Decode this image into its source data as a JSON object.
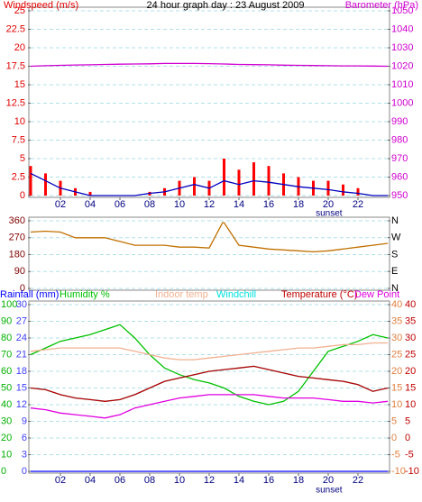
{
  "chart_data": [
    {
      "type": "line",
      "title": "24 hour graph day : 23 August 2009",
      "ylabel": "Windspeed (m/s)",
      "ylabel_color": "#e00000",
      "y2label": "Barometer (hPa)",
      "y2label_color": "#d000d0",
      "x": [
        0,
        1,
        2,
        3,
        4,
        5,
        6,
        7,
        8,
        9,
        10,
        11,
        12,
        13,
        14,
        15,
        16,
        17,
        18,
        19,
        20,
        21,
        22,
        23,
        24
      ],
      "xlim": [
        0,
        24
      ],
      "xticks": [
        {
          "value": 2,
          "label": "02"
        },
        {
          "value": 4,
          "label": "04"
        },
        {
          "value": 6,
          "label": "06"
        },
        {
          "value": 8,
          "label": "08"
        },
        {
          "value": 10,
          "label": "10"
        },
        {
          "value": 12,
          "label": "12"
        },
        {
          "value": 14,
          "label": "14"
        },
        {
          "value": 16,
          "label": "16"
        },
        {
          "value": 18,
          "label": "18"
        },
        {
          "value": 20,
          "label": "20"
        },
        {
          "value": 22,
          "label": "22"
        }
      ],
      "annotation": {
        "label": "sunset",
        "x": 20.05
      },
      "ylim": [
        0,
        25
      ],
      "yticks": [
        0,
        2.5,
        5,
        7.5,
        10,
        12.5,
        15,
        17.5,
        20,
        22.5,
        25
      ],
      "y2lim": [
        950,
        1050
      ],
      "y2ticks": [
        950,
        960,
        970,
        980,
        990,
        1000,
        1010,
        1020,
        1030,
        1040,
        1050
      ],
      "grid": true,
      "series": [
        {
          "type": "bar",
          "color": "#ff0000",
          "values": [
            4,
            3,
            2,
            1,
            0.5,
            0,
            0,
            0,
            0.5,
            1,
            2,
            2.5,
            2,
            5,
            3.5,
            4.5,
            4,
            3,
            2.5,
            2,
            2,
            1.5,
            1,
            0,
            0
          ]
        },
        {
          "type": "line",
          "color": "#0000c0",
          "values": [
            3,
            2,
            1,
            0.5,
            0,
            0,
            0,
            0,
            0.3,
            0.5,
            1,
            1.5,
            1,
            2,
            1.5,
            2,
            1.8,
            1.5,
            1.2,
            1,
            0.8,
            0.5,
            0.3,
            0,
            0
          ]
        },
        {
          "type": "line",
          "color": "#d000d0",
          "axis": "y2",
          "values": [
            1020,
            1020.3,
            1020.5,
            1020.7,
            1020.8,
            1021,
            1021.1,
            1021.2,
            1021.3,
            1021.5,
            1021.5,
            1021.5,
            1021.4,
            1021.2,
            1021,
            1020.9,
            1020.8,
            1020.6,
            1020.5,
            1020.4,
            1020.3,
            1020.2,
            1020.2,
            1020.1,
            1020
          ]
        }
      ]
    },
    {
      "type": "line",
      "ylabel_color": "#800000",
      "y2label_color": "#000000",
      "x": [
        0,
        1,
        2,
        3,
        4,
        5,
        6,
        7,
        8,
        9,
        10,
        11,
        12,
        12.9,
        13,
        14,
        15,
        16,
        17,
        18,
        19,
        20,
        21,
        22,
        23,
        24
      ],
      "xlim": [
        0,
        24
      ],
      "ylim": [
        0,
        360
      ],
      "yticks": [
        0,
        90,
        180,
        270,
        360
      ],
      "y2lim": [
        0,
        360
      ],
      "y2ticks": [
        {
          "value": 360,
          "label": "N"
        },
        {
          "value": 270,
          "label": "W"
        },
        {
          "value": 180,
          "label": "S"
        },
        {
          "value": 90,
          "label": "E"
        },
        {
          "value": 0,
          "label": "N"
        }
      ],
      "grid": true,
      "series": [
        {
          "type": "line",
          "color": "#c07000",
          "values": [
            300,
            305,
            300,
            270,
            270,
            270,
            250,
            230,
            230,
            230,
            220,
            220,
            215,
            350,
            350,
            230,
            220,
            210,
            205,
            200,
            195,
            200,
            210,
            220,
            230,
            240
          ]
        }
      ]
    },
    {
      "type": "line",
      "ylabel_color": "#00b000",
      "y2label_color": "#e08040",
      "y2label_color2": "#c00000",
      "y3label_color": "#4040ff",
      "x": [
        0,
        1,
        2,
        3,
        4,
        5,
        6,
        7,
        8,
        9,
        10,
        11,
        12,
        13,
        14,
        15,
        16,
        17,
        18,
        19,
        20,
        21,
        22,
        23,
        24
      ],
      "xlim": [
        0,
        24
      ],
      "xticks": [
        {
          "value": 2,
          "label": "02"
        },
        {
          "value": 4,
          "label": "04"
        },
        {
          "value": 6,
          "label": "06"
        },
        {
          "value": 8,
          "label": "08"
        },
        {
          "value": 10,
          "label": "10"
        },
        {
          "value": 12,
          "label": "12"
        },
        {
          "value": 14,
          "label": "14"
        },
        {
          "value": 16,
          "label": "16"
        },
        {
          "value": 18,
          "label": "18"
        },
        {
          "value": 20,
          "label": "20"
        },
        {
          "value": 22,
          "label": "22"
        }
      ],
      "annotation": {
        "label": "sunset",
        "x": 20.05
      },
      "ylim": [
        0,
        100
      ],
      "yticks": [
        0,
        10,
        20,
        30,
        40,
        50,
        60,
        70,
        80,
        90,
        100
      ],
      "y2lim": [
        -10,
        40
      ],
      "y2ticks": [
        -10,
        -5,
        0,
        5,
        10,
        15,
        20,
        25,
        30,
        35,
        40
      ],
      "y3lim": [
        0,
        30
      ],
      "y3ticks": [
        0,
        3,
        6,
        9,
        12,
        15,
        18,
        21,
        24,
        27,
        30
      ],
      "grid": true,
      "series": [
        {
          "name": "Rainfall (mm)",
          "type": "line",
          "color": "#0000ff",
          "axis": "y3",
          "values": [
            0,
            0,
            0,
            0,
            0,
            0,
            0,
            0,
            0,
            0,
            0,
            0,
            0,
            0,
            0,
            0,
            0,
            0,
            0,
            0,
            0,
            0,
            0,
            0,
            0
          ]
        },
        {
          "name": "Humidity %",
          "type": "line",
          "color": "#00c000",
          "values": [
            70,
            74,
            78,
            80,
            82,
            85,
            88,
            80,
            70,
            62,
            58,
            55,
            53,
            50,
            45,
            42,
            40,
            42,
            48,
            60,
            72,
            75,
            78,
            82,
            80
          ]
        },
        {
          "name": "Indoor temp",
          "type": "line",
          "color": "#f0b090",
          "axis": "y2",
          "values": [
            26,
            26.5,
            27,
            27,
            27,
            27,
            27,
            26,
            25,
            24,
            23.5,
            23.5,
            24,
            24.5,
            25,
            25.5,
            26,
            26.5,
            27,
            27,
            27.5,
            28,
            28,
            28.5,
            28.5
          ]
        },
        {
          "name": "Windchill",
          "type": "line",
          "color": "#00e0e0",
          "axis": "y2",
          "values": [
            15,
            14.5,
            13,
            12,
            11.5,
            11,
            11.5,
            13,
            15,
            17,
            18,
            19,
            20,
            20.5,
            21,
            21.5,
            20.5,
            19.5,
            18.5,
            18,
            17.5,
            17,
            16,
            14,
            15
          ]
        },
        {
          "name": "Temperature (°C)",
          "type": "line",
          "color": "#c00000",
          "axis": "y2",
          "values": [
            15,
            14.5,
            13,
            12,
            11.5,
            11,
            11.5,
            13,
            15,
            17,
            18,
            19,
            20,
            20.5,
            21,
            21.5,
            20.5,
            19.5,
            18.5,
            18,
            17.5,
            17,
            16,
            14,
            15
          ]
        },
        {
          "name": "Dew Point",
          "type": "line",
          "color": "#e000e0",
          "axis": "y2",
          "values": [
            9,
            8.5,
            7.5,
            7,
            6.5,
            6,
            7,
            9,
            10,
            11,
            12,
            12.5,
            13,
            13,
            13,
            13,
            12.5,
            12,
            12,
            12,
            11.5,
            11,
            11,
            10.5,
            11
          ]
        }
      ]
    }
  ]
}
